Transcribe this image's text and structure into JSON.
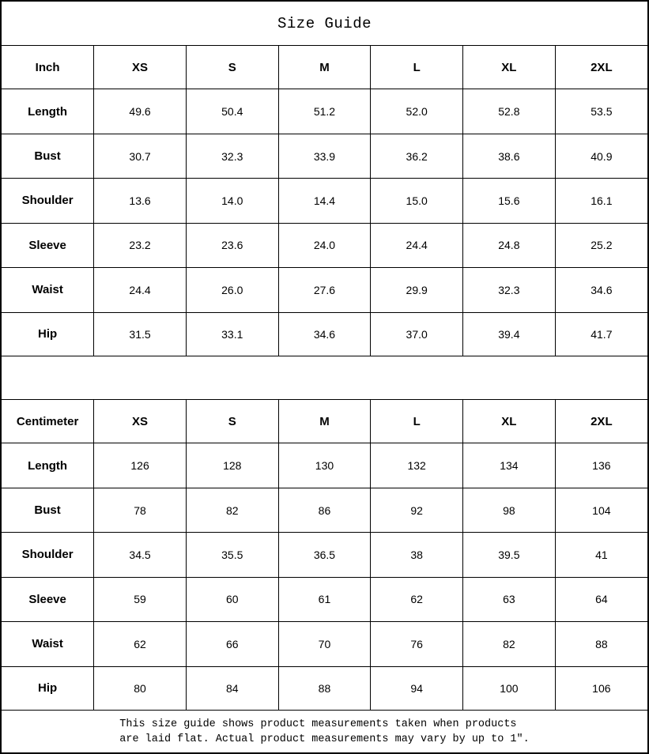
{
  "title": "Size Guide",
  "chart_data": [
    {
      "type": "table",
      "unit": "Inch",
      "sizes": [
        "XS",
        "S",
        "M",
        "L",
        "XL",
        "2XL"
      ],
      "rows": [
        {
          "label": "Length",
          "values": [
            "49.6",
            "50.4",
            "51.2",
            "52.0",
            "52.8",
            "53.5"
          ]
        },
        {
          "label": "Bust",
          "values": [
            "30.7",
            "32.3",
            "33.9",
            "36.2",
            "38.6",
            "40.9"
          ]
        },
        {
          "label": "Shoulder",
          "values": [
            "13.6",
            "14.0",
            "14.4",
            "15.0",
            "15.6",
            "16.1"
          ]
        },
        {
          "label": "Sleeve",
          "values": [
            "23.2",
            "23.6",
            "24.0",
            "24.4",
            "24.8",
            "25.2"
          ]
        },
        {
          "label": "Waist",
          "values": [
            "24.4",
            "26.0",
            "27.6",
            "29.9",
            "32.3",
            "34.6"
          ]
        },
        {
          "label": "Hip",
          "values": [
            "31.5",
            "33.1",
            "34.6",
            "37.0",
            "39.4",
            "41.7"
          ]
        }
      ]
    },
    {
      "type": "table",
      "unit": "Centimeter",
      "sizes": [
        "XS",
        "S",
        "M",
        "L",
        "XL",
        "2XL"
      ],
      "rows": [
        {
          "label": "Length",
          "values": [
            "126",
            "128",
            "130",
            "132",
            "134",
            "136"
          ]
        },
        {
          "label": "Bust",
          "values": [
            "78",
            "82",
            "86",
            "92",
            "98",
            "104"
          ]
        },
        {
          "label": "Shoulder",
          "values": [
            "34.5",
            "35.5",
            "36.5",
            "38",
            "39.5",
            "41"
          ]
        },
        {
          "label": "Sleeve",
          "values": [
            "59",
            "60",
            "61",
            "62",
            "63",
            "64"
          ]
        },
        {
          "label": "Waist",
          "values": [
            "62",
            "66",
            "70",
            "76",
            "82",
            "88"
          ]
        },
        {
          "label": "Hip",
          "values": [
            "80",
            "84",
            "88",
            "94",
            "100",
            "106"
          ]
        }
      ]
    }
  ],
  "footnote": {
    "line1": "This size guide shows product measurements taken when products",
    "line2": "are laid flat. Actual product measurements may vary by up to 1″."
  },
  "colors": {
    "border": "#000000",
    "text": "#000000",
    "background": "#ffffff"
  }
}
